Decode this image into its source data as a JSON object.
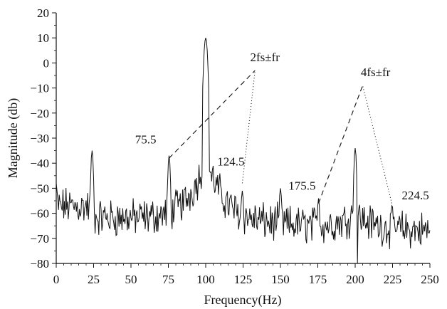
{
  "chart_data": {
    "type": "line",
    "xlabel": "Frequency(Hz)",
    "ylabel": "Magnitude (db)",
    "xlim": [
      0,
      250
    ],
    "ylim": [
      -80,
      20
    ],
    "xticks": [
      0,
      25,
      50,
      75,
      100,
      125,
      150,
      175,
      200,
      225,
      250
    ],
    "yticks": [
      -80,
      -70,
      -60,
      -50,
      -40,
      -30,
      -20,
      -10,
      0,
      10,
      20
    ],
    "grid": false,
    "noise_floor_db": -61,
    "peaks": [
      {
        "x": 0,
        "y": -48
      },
      {
        "x": 24,
        "y": -35
      },
      {
        "x": 75.5,
        "y": -37
      },
      {
        "x": 100,
        "y": 10
      },
      {
        "x": 124.5,
        "y": -51
      },
      {
        "x": 150,
        "y": -50
      },
      {
        "x": 175.5,
        "y": -54
      },
      {
        "x": 200,
        "y": -34
      },
      {
        "x": 224.5,
        "y": -57
      }
    ],
    "annotations": [
      {
        "text": "75.5",
        "x": 75.5
      },
      {
        "text": "124.5",
        "x": 124.5
      },
      {
        "text": "175.5",
        "x": 175.5
      },
      {
        "text": "224.5",
        "x": 224.5
      },
      {
        "text": "2fs±fr",
        "x": 132,
        "y": -3
      },
      {
        "text": "4fs±fr",
        "x": 206,
        "y": -9
      }
    ],
    "guide_lines": [
      {
        "style": "dashed",
        "from": [
          75.5,
          -38
        ],
        "to": [
          133,
          -3
        ]
      },
      {
        "style": "dotted",
        "from": [
          124.5,
          -48
        ],
        "to": [
          133,
          -3
        ]
      },
      {
        "style": "dashed",
        "from": [
          175.5,
          -56
        ],
        "to": [
          205,
          -9
        ]
      },
      {
        "style": "dotted",
        "from": [
          224.5,
          -56
        ],
        "to": [
          205,
          -9
        ]
      }
    ]
  }
}
